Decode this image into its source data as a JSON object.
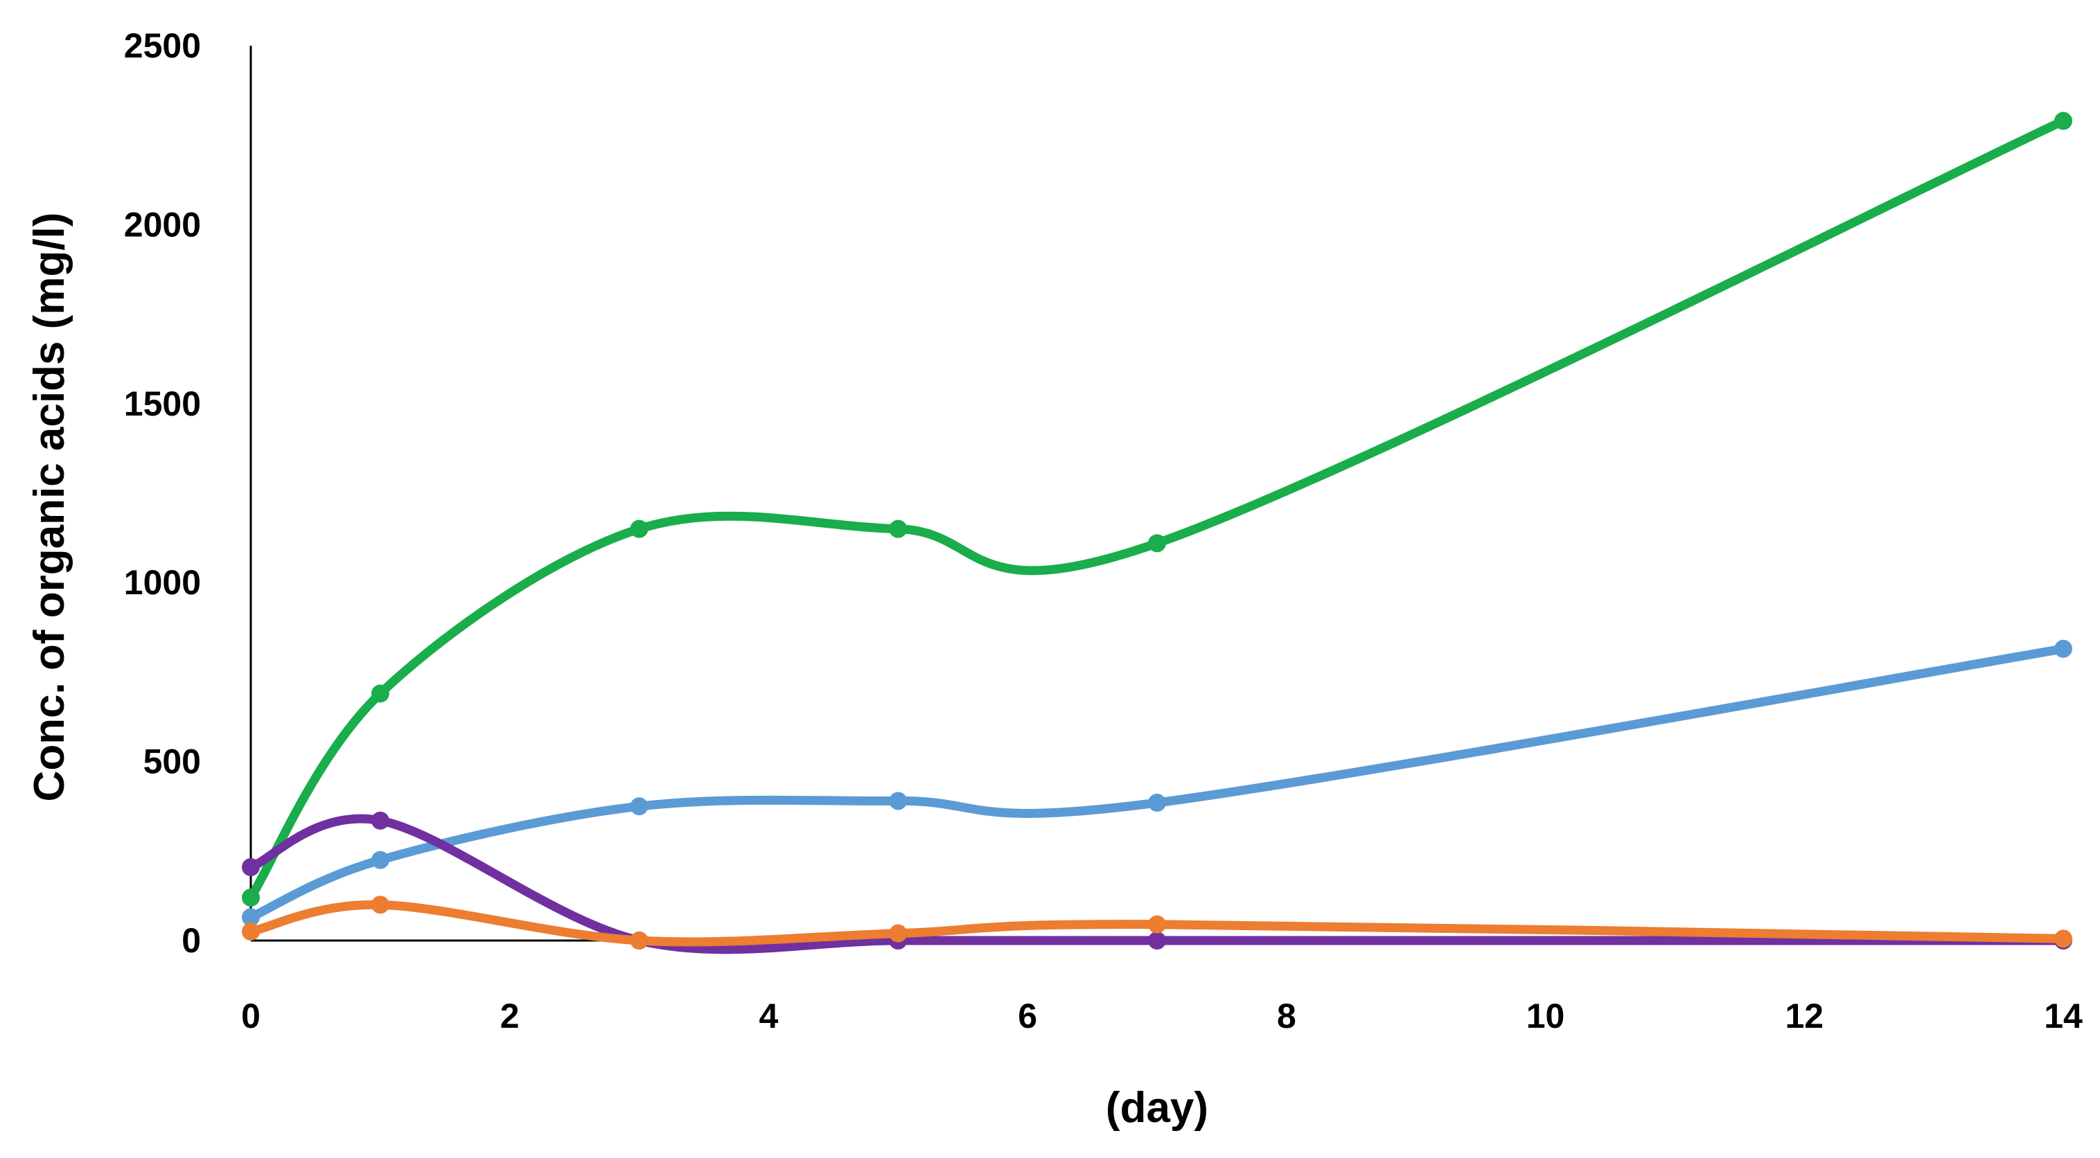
{
  "chart_data": {
    "type": "line",
    "title": "",
    "xlabel": "(day)",
    "ylabel": "Conc. of organic acids (mg/l)",
    "xlim": [
      0,
      14
    ],
    "ylim": [
      0,
      2500
    ],
    "x_ticks": [
      0,
      2,
      4,
      6,
      8,
      10,
      12,
      14
    ],
    "y_ticks": [
      0,
      500,
      1000,
      1500,
      2000,
      2500
    ],
    "grid": false,
    "legend": "none",
    "smoothed": true,
    "x": [
      0,
      1,
      3,
      5,
      7,
      14
    ],
    "series": [
      {
        "color": "#1aad4b",
        "values": [
          120,
          690,
          1150,
          1150,
          1110,
          2290
        ]
      },
      {
        "color": "#5b9bd5",
        "values": [
          65,
          225,
          375,
          390,
          385,
          815
        ]
      },
      {
        "color": "#7030a0",
        "values": [
          205,
          335,
          0,
          0,
          0,
          0
        ]
      },
      {
        "color": "#ed7d31",
        "values": [
          25,
          100,
          0,
          20,
          45,
          5
        ]
      }
    ]
  }
}
